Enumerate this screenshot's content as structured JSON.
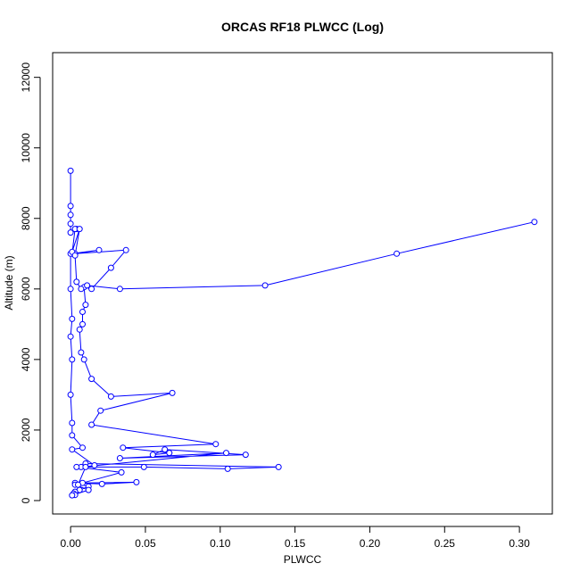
{
  "chart_data": {
    "type": "line",
    "title": "ORCAS RF18 PLWCC (Log)",
    "xlabel": "PLWCC",
    "ylabel": "Altitude (m)",
    "xlim": [
      -0.012,
      0.322
    ],
    "ylim": [
      -380,
      12700
    ],
    "xticks": [
      0.0,
      0.05,
      0.1,
      0.15,
      0.2,
      0.25,
      0.3
    ],
    "xtick_labels": [
      "0.00",
      "0.05",
      "0.10",
      "0.15",
      "0.20",
      "0.25",
      "0.30"
    ],
    "yticks": [
      0,
      2000,
      4000,
      6000,
      8000,
      10000,
      12000
    ],
    "ytick_labels": [
      "0",
      "2000",
      "4000",
      "6000",
      "8000",
      "10000",
      "12000"
    ],
    "grid": false,
    "legend": "none",
    "colors": {
      "series": "#0000ff",
      "axis": "#000000",
      "background": "#ffffff"
    },
    "series": [
      {
        "marker": "open-circle",
        "x": [
          0.0,
          0.0,
          0.0,
          0.0,
          0.0,
          0.004,
          0.003,
          0.001,
          0.019,
          0.003,
          0.037,
          0.027,
          0.014,
          0.009,
          0.01,
          0.008,
          0.008,
          0.006,
          0.007,
          0.009,
          0.014,
          0.027,
          0.068,
          0.02,
          0.014,
          0.097,
          0.035,
          0.066,
          0.055,
          0.063,
          0.117,
          0.033,
          0.104,
          0.007,
          0.049,
          0.105,
          0.139,
          0.01,
          0.004,
          0.034,
          0.008,
          0.044,
          0.021,
          0.003,
          0.012,
          0.006,
          0.003,
          0.002,
          0.003,
          0.001,
          0.012,
          0.003,
          0.005,
          0.01,
          0.016,
          0.001,
          0.008,
          0.001,
          0.001,
          0.0,
          0.001,
          0.0,
          0.001,
          0.0,
          0.0,
          0.001,
          0.006,
          0.003,
          0.004,
          0.007,
          0.011,
          0.033,
          0.13,
          0.218,
          0.31
        ],
        "y": [
          9350,
          8350,
          8100,
          7850,
          7600,
          7700,
          7700,
          7000,
          7100,
          7000,
          7100,
          6600,
          6000,
          6050,
          5550,
          5350,
          5000,
          4850,
          4200,
          4000,
          3450,
          2950,
          3050,
          2550,
          2150,
          1600,
          1500,
          1350,
          1300,
          1450,
          1300,
          1200,
          1350,
          950,
          950,
          900,
          950,
          1050,
          950,
          800,
          500,
          520,
          470,
          500,
          400,
          300,
          250,
          200,
          160,
          150,
          300,
          450,
          450,
          950,
          1000,
          1450,
          1500,
          1850,
          2200,
          3000,
          4000,
          4650,
          5150,
          6000,
          7000,
          7050,
          7700,
          6950,
          6200,
          6000,
          6100,
          6000,
          6100,
          7000,
          7900
        ]
      }
    ]
  }
}
